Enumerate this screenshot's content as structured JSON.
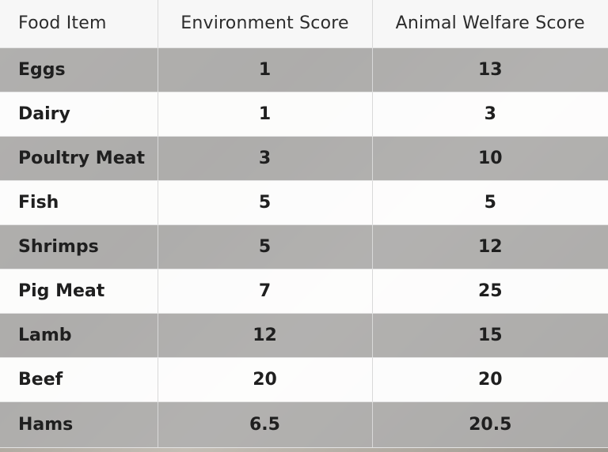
{
  "chart_data": {
    "type": "table",
    "columns": [
      "Food Item",
      "Environment Score",
      "Animal Welfare Score"
    ],
    "rows": [
      {
        "item": "Eggs",
        "environment": "1",
        "welfare": "13"
      },
      {
        "item": "Dairy",
        "environment": "1",
        "welfare": "3"
      },
      {
        "item": "Poultry Meat",
        "environment": "3",
        "welfare": "10"
      },
      {
        "item": "Fish",
        "environment": "5",
        "welfare": "5"
      },
      {
        "item": "Shrimps",
        "environment": "5",
        "welfare": "12"
      },
      {
        "item": "Pig Meat",
        "environment": "7",
        "welfare": "25"
      },
      {
        "item": "Lamb",
        "environment": "12",
        "welfare": "15"
      },
      {
        "item": "Beef",
        "environment": "20",
        "welfare": "20"
      },
      {
        "item": "Hams",
        "environment": "6.5",
        "welfare": "20.5"
      }
    ]
  }
}
